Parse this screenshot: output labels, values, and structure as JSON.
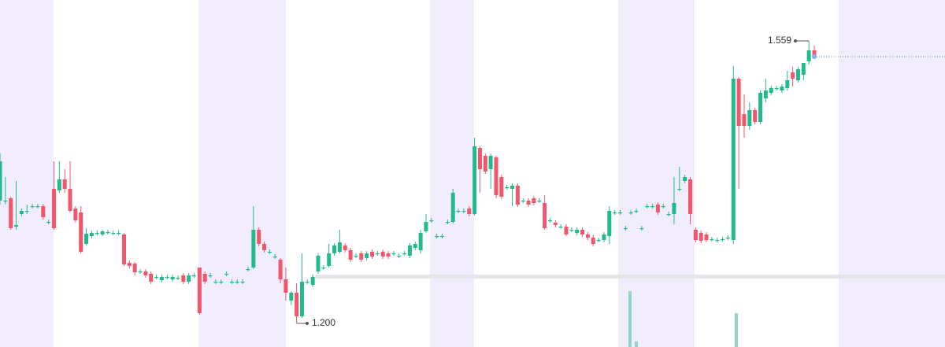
{
  "chart_data": {
    "type": "candlestick",
    "up_color": "#22ba8c",
    "down_color": "#f0566c",
    "ylim": [
      1.17,
      1.611
    ],
    "high_label": 1.559,
    "low_label": {
      "value": 1.2,
      "label": "1.200"
    },
    "candles": [
      [
        1.356,
        1.416,
        1.351,
        1.406
      ],
      [
        1.356,
        1.386,
        1.351,
        1.356
      ],
      [
        1.359,
        1.361,
        1.319,
        1.321
      ],
      [
        1.323,
        1.381,
        1.319,
        1.325
      ],
      [
        1.339,
        1.346,
        1.336,
        1.343
      ],
      [
        1.343,
        1.351,
        1.339,
        1.343
      ],
      [
        1.349,
        1.352,
        1.346,
        1.349
      ],
      [
        1.349,
        1.352,
        1.346,
        1.349
      ],
      [
        1.349,
        1.352,
        1.332,
        1.335
      ],
      [
        1.329,
        1.332,
        1.326,
        1.329
      ],
      [
        1.371,
        1.406,
        1.319,
        1.321
      ],
      [
        1.369,
        1.406,
        1.366,
        1.383
      ],
      [
        1.383,
        1.396,
        1.366,
        1.371
      ],
      [
        1.371,
        1.406,
        1.341,
        1.343
      ],
      [
        1.346,
        1.349,
        1.328,
        1.331
      ],
      [
        1.341,
        1.349,
        1.289,
        1.291
      ],
      [
        1.301,
        1.321,
        1.299,
        1.314
      ],
      [
        1.311,
        1.318,
        1.308,
        1.315
      ],
      [
        1.315,
        1.318,
        1.312,
        1.315
      ],
      [
        1.313,
        1.319,
        1.311,
        1.317
      ],
      [
        1.316,
        1.319,
        1.313,
        1.316
      ],
      [
        1.315,
        1.318,
        1.312,
        1.315
      ],
      [
        1.315,
        1.318,
        1.312,
        1.315
      ],
      [
        1.313,
        1.315,
        1.273,
        1.275
      ],
      [
        1.277,
        1.28,
        1.27,
        1.273
      ],
      [
        1.276,
        1.278,
        1.261,
        1.265
      ],
      [
        1.266,
        1.269,
        1.263,
        1.266
      ],
      [
        1.266,
        1.269,
        1.258,
        1.261
      ],
      [
        1.263,
        1.266,
        1.25,
        1.253
      ],
      [
        1.259,
        1.262,
        1.256,
        1.259
      ],
      [
        1.255,
        1.262,
        1.252,
        1.259
      ],
      [
        1.259,
        1.262,
        1.256,
        1.259
      ],
      [
        1.256,
        1.262,
        1.253,
        1.259
      ],
      [
        1.258,
        1.261,
        1.255,
        1.258
      ],
      [
        1.261,
        1.264,
        1.25,
        1.253
      ],
      [
        1.253,
        1.264,
        1.25,
        1.261
      ],
      [
        1.261,
        1.264,
        1.258,
        1.261
      ],
      [
        1.271,
        1.271,
        1.211,
        1.213
      ],
      [
        1.263,
        1.266,
        1.25,
        1.253
      ],
      [
        1.261,
        1.264,
        1.258,
        1.261
      ],
      [
        1.253,
        1.256,
        1.25,
        1.253
      ],
      [
        1.253,
        1.256,
        1.25,
        1.253
      ],
      [
        1.263,
        1.266,
        1.26,
        1.263
      ],
      [
        1.253,
        1.256,
        1.25,
        1.253
      ],
      [
        1.253,
        1.256,
        1.25,
        1.253
      ],
      [
        1.253,
        1.256,
        1.25,
        1.253
      ],
      [
        1.269,
        1.272,
        1.266,
        1.269
      ],
      [
        1.271,
        1.349,
        1.269,
        1.319
      ],
      [
        1.319,
        1.322,
        1.298,
        1.301
      ],
      [
        1.301,
        1.304,
        1.29,
        1.293
      ],
      [
        1.291,
        1.294,
        1.288,
        1.291
      ],
      [
        1.285,
        1.288,
        1.282,
        1.285
      ],
      [
        1.281,
        1.283,
        1.251,
        1.256
      ],
      [
        1.256,
        1.271,
        1.229,
        1.239
      ],
      [
        1.229,
        1.241,
        1.223,
        1.239
      ],
      [
        1.239,
        1.251,
        1.2,
        1.209
      ],
      [
        1.209,
        1.289,
        1.207,
        1.253
      ],
      [
        1.253,
        1.256,
        1.25,
        1.253
      ],
      [
        1.249,
        1.262,
        1.246,
        1.259
      ],
      [
        1.266,
        1.289,
        1.263,
        1.286
      ],
      [
        1.271,
        1.274,
        1.268,
        1.271
      ],
      [
        1.273,
        1.301,
        1.271,
        1.289
      ],
      [
        1.289,
        1.302,
        1.286,
        1.299
      ],
      [
        1.291,
        1.319,
        1.289,
        1.303
      ],
      [
        1.299,
        1.302,
        1.29,
        1.293
      ],
      [
        1.293,
        1.296,
        1.278,
        1.281
      ],
      [
        1.286,
        1.289,
        1.283,
        1.286
      ],
      [
        1.289,
        1.292,
        1.278,
        1.281
      ],
      [
        1.283,
        1.292,
        1.28,
        1.289
      ],
      [
        1.291,
        1.294,
        1.282,
        1.285
      ],
      [
        1.289,
        1.292,
        1.286,
        1.289
      ],
      [
        1.291,
        1.294,
        1.282,
        1.285
      ],
      [
        1.289,
        1.292,
        1.282,
        1.285
      ],
      [
        1.289,
        1.292,
        1.286,
        1.289
      ],
      [
        1.286,
        1.289,
        1.283,
        1.286
      ],
      [
        1.289,
        1.292,
        1.286,
        1.289
      ],
      [
        1.286,
        1.302,
        1.283,
        1.299
      ],
      [
        1.296,
        1.304,
        1.293,
        1.301
      ],
      [
        1.293,
        1.319,
        1.289,
        1.315
      ],
      [
        1.317,
        1.339,
        1.315,
        1.329
      ],
      [
        1.331,
        1.334,
        1.328,
        1.331
      ],
      [
        1.311,
        1.314,
        1.308,
        1.311
      ],
      [
        1.311,
        1.314,
        1.308,
        1.311
      ],
      [
        1.329,
        1.332,
        1.326,
        1.329
      ],
      [
        1.329,
        1.371,
        1.327,
        1.366
      ],
      [
        1.343,
        1.346,
        1.34,
        1.343
      ],
      [
        1.343,
        1.346,
        1.34,
        1.343
      ],
      [
        1.346,
        1.349,
        1.336,
        1.339
      ],
      [
        1.339,
        1.436,
        1.337,
        1.425
      ],
      [
        1.423,
        1.425,
        1.366,
        1.396
      ],
      [
        1.413,
        1.416,
        1.39,
        1.393
      ],
      [
        1.396,
        1.416,
        1.371,
        1.413
      ],
      [
        1.411,
        1.413,
        1.359,
        1.363
      ],
      [
        1.386,
        1.389,
        1.358,
        1.361
      ],
      [
        1.373,
        1.376,
        1.37,
        1.373
      ],
      [
        1.371,
        1.378,
        1.349,
        1.375
      ],
      [
        1.375,
        1.378,
        1.348,
        1.351
      ],
      [
        1.356,
        1.359,
        1.353,
        1.356
      ],
      [
        1.356,
        1.359,
        1.348,
        1.351
      ],
      [
        1.359,
        1.362,
        1.35,
        1.353
      ],
      [
        1.356,
        1.359,
        1.353,
        1.356
      ],
      [
        1.353,
        1.363,
        1.319,
        1.321
      ],
      [
        1.331,
        1.334,
        1.328,
        1.331
      ],
      [
        1.328,
        1.331,
        1.322,
        1.325
      ],
      [
        1.323,
        1.326,
        1.32,
        1.323
      ],
      [
        1.323,
        1.326,
        1.311,
        1.313
      ],
      [
        1.319,
        1.322,
        1.316,
        1.319
      ],
      [
        1.315,
        1.322,
        1.312,
        1.319
      ],
      [
        1.319,
        1.322,
        1.31,
        1.313
      ],
      [
        1.313,
        1.316,
        1.306,
        1.309
      ],
      [
        1.309,
        1.312,
        1.298,
        1.301
      ],
      [
        1.306,
        1.309,
        1.303,
        1.306
      ],
      [
        1.306,
        1.316,
        1.303,
        1.313
      ],
      [
        1.311,
        1.349,
        1.301,
        1.343
      ],
      [
        1.341,
        1.344,
        1.338,
        1.341
      ],
      [
        1.341,
        1.344,
        1.338,
        1.341
      ],
      [
        1.321,
        1.324,
        1.318,
        1.321
      ],
      [
        1.341,
        1.344,
        1.338,
        1.341
      ],
      [
        1.343,
        1.346,
        1.34,
        1.343
      ],
      [
        1.321,
        1.324,
        1.318,
        1.321
      ],
      [
        1.349,
        1.352,
        1.346,
        1.349
      ],
      [
        1.349,
        1.352,
        1.346,
        1.349
      ],
      [
        1.351,
        1.354,
        1.338,
        1.341
      ],
      [
        1.349,
        1.352,
        1.346,
        1.349
      ],
      [
        1.339,
        1.342,
        1.336,
        1.339
      ],
      [
        1.339,
        1.386,
        1.326,
        1.353
      ],
      [
        1.371,
        1.399,
        1.368,
        1.371
      ],
      [
        1.381,
        1.389,
        1.378,
        1.386
      ],
      [
        1.383,
        1.386,
        1.326,
        1.339
      ],
      [
        1.319,
        1.322,
        1.303,
        1.306
      ],
      [
        1.315,
        1.318,
        1.302,
        1.305
      ],
      [
        1.313,
        1.316,
        1.303,
        1.306
      ],
      [
        1.307,
        1.31,
        1.304,
        1.307
      ],
      [
        1.306,
        1.309,
        1.303,
        1.306
      ],
      [
        1.307,
        1.31,
        1.304,
        1.307
      ],
      [
        1.309,
        1.312,
        1.306,
        1.309
      ],
      [
        1.306,
        1.527,
        1.301,
        1.511
      ],
      [
        1.511,
        1.513,
        1.371,
        1.451
      ],
      [
        1.466,
        1.491,
        1.436,
        1.451
      ],
      [
        1.451,
        1.481,
        1.446,
        1.471
      ],
      [
        1.471,
        1.474,
        1.453,
        1.456
      ],
      [
        1.456,
        1.496,
        1.453,
        1.493
      ],
      [
        1.486,
        1.511,
        1.481,
        1.496
      ],
      [
        1.493,
        1.502,
        1.49,
        1.499
      ],
      [
        1.499,
        1.502,
        1.496,
        1.499
      ],
      [
        1.496,
        1.504,
        1.493,
        1.501
      ],
      [
        1.499,
        1.521,
        1.496,
        1.509
      ],
      [
        1.519,
        1.526,
        1.501,
        1.511
      ],
      [
        1.509,
        1.526,
        1.506,
        1.523
      ],
      [
        1.516,
        1.531,
        1.509,
        1.531
      ],
      [
        1.533,
        1.559,
        1.529,
        1.547
      ],
      [
        1.547,
        1.553,
        1.537,
        1.539
      ]
    ]
  }
}
